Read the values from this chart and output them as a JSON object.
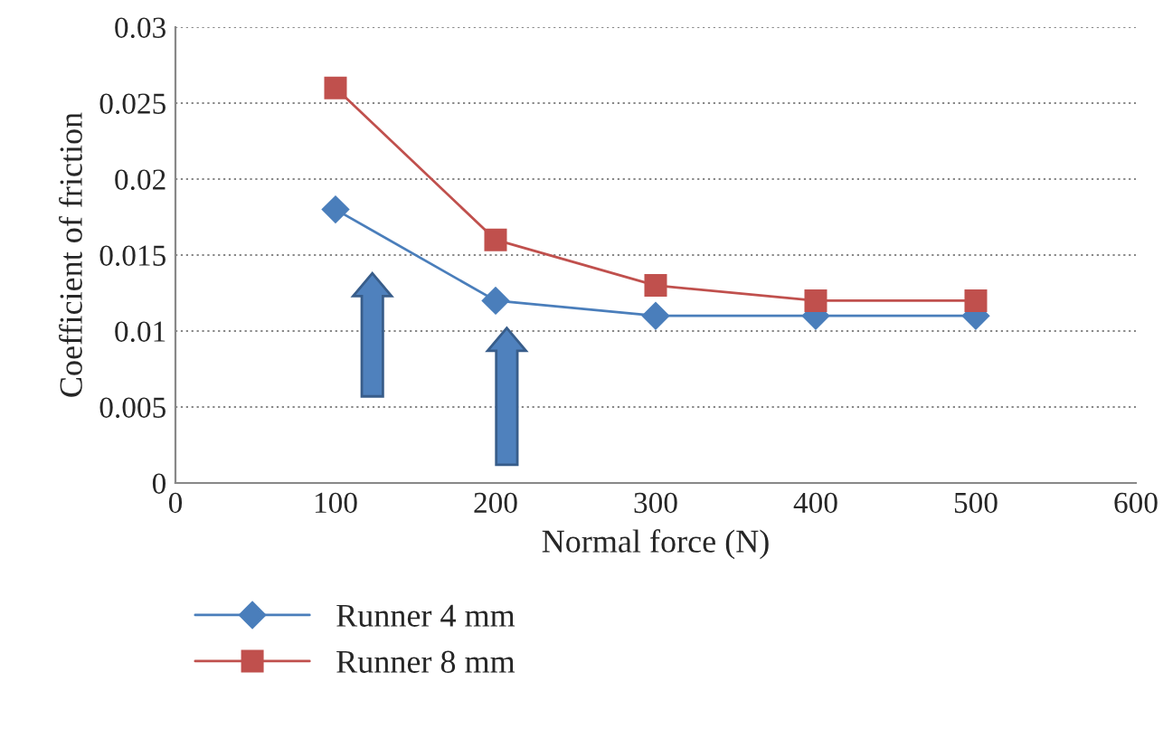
{
  "chart_data": {
    "type": "line",
    "xlabel": "Normal force (N)",
    "ylabel": "Coefficient of friction",
    "x": [
      100,
      200,
      300,
      400,
      500
    ],
    "series": [
      {
        "name": "Runner 4 mm",
        "color": "#4a7ebb",
        "marker": "diamond",
        "values": [
          0.018,
          0.012,
          0.011,
          0.011,
          0.011
        ]
      },
      {
        "name": "Runner 8 mm",
        "color": "#c0504d",
        "marker": "square",
        "values": [
          0.026,
          0.016,
          0.013,
          0.012,
          0.012
        ]
      }
    ],
    "xlim": [
      0,
      600
    ],
    "xticks": [
      0,
      100,
      200,
      300,
      400,
      500,
      600
    ],
    "ylim": [
      0,
      0.03
    ],
    "yticks": [
      0,
      0.005,
      0.01,
      0.015,
      0.02,
      0.025,
      0.03
    ],
    "grid": "y",
    "legend": "bottom",
    "line_style": "solid"
  }
}
